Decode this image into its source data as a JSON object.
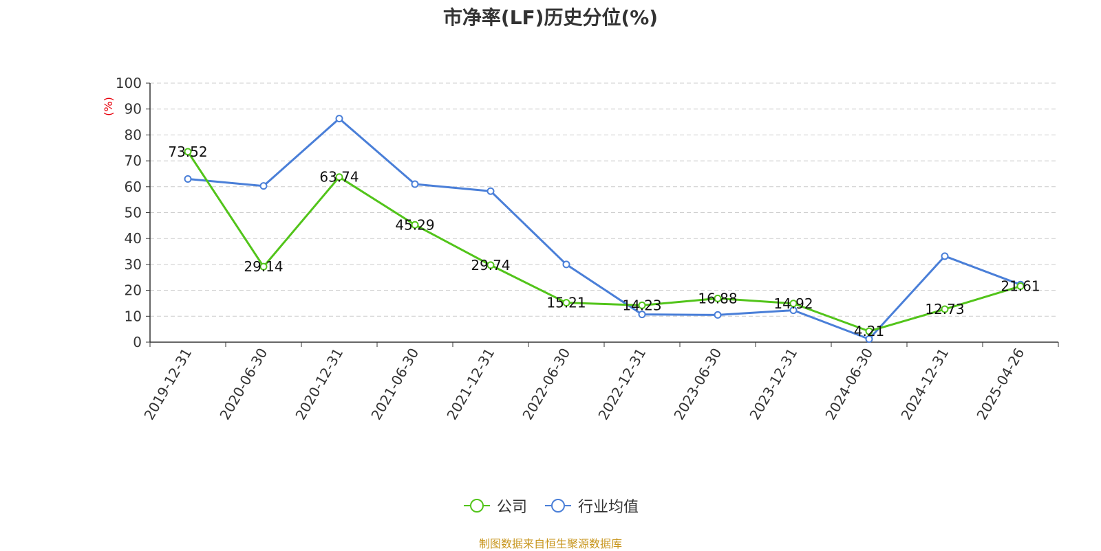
{
  "title": "市净率(LF)历史分位(%)",
  "source_note": "制图数据来自恒生聚源数据库",
  "colors": {
    "company": "#52c41a",
    "industry": "#4a7fd8",
    "ylabel": "#e8000b",
    "source": "#c8961e",
    "grid": "#cccccc"
  },
  "chart_data": {
    "type": "line",
    "title": "市净率(LF)历史分位(%)",
    "ylabel": "(%)",
    "xlabel": "",
    "ylim": [
      0,
      100
    ],
    "yticks": [
      0,
      10,
      20,
      30,
      40,
      50,
      60,
      70,
      80,
      90,
      100
    ],
    "grid": true,
    "legend_position": "bottom-center",
    "categories": [
      "2019-12-31",
      "2020-06-30",
      "2020-12-31",
      "2021-06-30",
      "2021-12-31",
      "2022-06-30",
      "2022-12-31",
      "2023-06-30",
      "2023-12-31",
      "2024-06-30",
      "2024-12-31",
      "2025-04-26"
    ],
    "series": [
      {
        "name": "公司",
        "color": "#52c41a",
        "values": [
          73.52,
          29.14,
          63.74,
          45.29,
          29.74,
          15.21,
          14.23,
          16.88,
          14.92,
          4.21,
          12.73,
          21.61
        ],
        "labels": [
          "73.52",
          "29.14",
          "63.74",
          "45.29",
          "29.74",
          "15.21",
          "14.23",
          "16.88",
          "14.92",
          "4.21",
          "12.73",
          "21.61"
        ]
      },
      {
        "name": "行业均值",
        "color": "#4a7fd8",
        "values": [
          63,
          60.3,
          86.3,
          61,
          58.3,
          30,
          10.7,
          10.5,
          12.3,
          1.2,
          33.2,
          22.2
        ]
      }
    ]
  }
}
